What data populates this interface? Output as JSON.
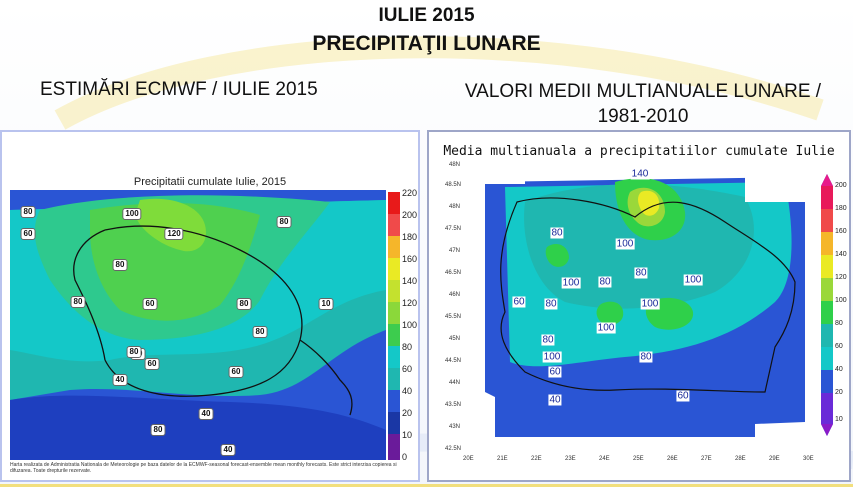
{
  "header": {
    "title": "IULIE 2015",
    "subtitle": "PRECIPITAŢII LUNARE"
  },
  "left_panel": {
    "heading": "ESTIMĂRI ECMWF / IULIE 2015",
    "map_title": "Precipitatii cumulate Iulie, 2015",
    "footer_text": "Harta realizata de Administratia Nationala de Meteorologie pe baza datelor de la ECMWF-seasonal forecast-ensemble mean monthly forecasts. Este strict interzisa copierea si difuzarea. Toate drepturile rezervate.",
    "colorbar_labels": [
      "220",
      "200",
      "180",
      "160",
      "140",
      "120",
      "100",
      "80",
      "60",
      "40",
      "20",
      "10",
      "0"
    ],
    "contour_labels": [
      "80",
      "60",
      "100",
      "120",
      "80",
      "80",
      "80",
      "60",
      "10",
      "80",
      "80",
      "60",
      "40",
      "60",
      "60",
      "40",
      "40",
      "80",
      "80"
    ]
  },
  "right_panel": {
    "heading": "VALORI MEDII MULTIANUALE LUNARE / 1981-2010",
    "map_title": "Media multianuala a precipitatiilor cumulate Iulie",
    "colorbar_labels": [
      "200",
      "180",
      "160",
      "140",
      "120",
      "100",
      "80",
      "60",
      "40",
      "20",
      "10"
    ],
    "lat_labels": [
      "48N",
      "48.5N",
      "48N",
      "47.5N",
      "47N",
      "46.5N",
      "46N",
      "45.5N",
      "45N",
      "44.5N",
      "44N",
      "43.5N",
      "43N",
      "42.5N"
    ],
    "lon_labels": [
      "20E",
      "21E",
      "22E",
      "23E",
      "24E",
      "25E",
      "26E",
      "27E",
      "28E",
      "29E",
      "30E"
    ],
    "contour_labels": [
      "140",
      "80",
      "100",
      "80",
      "100",
      "80",
      "100",
      "60",
      "80",
      "100",
      "100",
      "80",
      "100",
      "60",
      "80",
      "40",
      "60"
    ]
  },
  "colors": {
    "panel_border_left": "#b9c3ee",
    "panel_border_right": "#9ea6c8",
    "map_blue": "#2a55d4",
    "map_teal": "#1fb7b0",
    "map_green": "#2fd04a",
    "map_cyan": "#14c8c8"
  }
}
